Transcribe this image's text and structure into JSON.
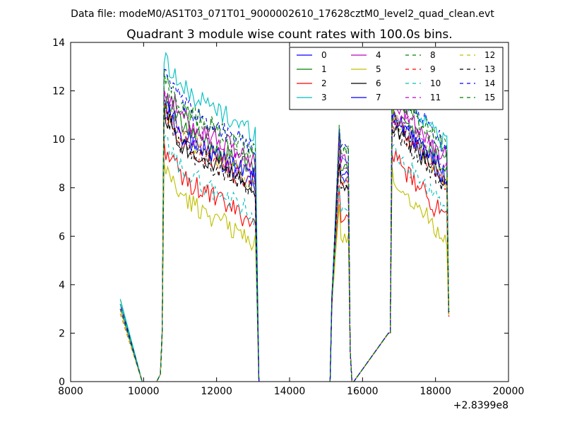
{
  "suptitle": "Data file: modeM0/AS1T03_071T01_9000002610_17628cztM0_level2_quad_clean.evt",
  "chart_data": {
    "type": "line",
    "title": "Quadrant 3 module wise count rates with 100.0s bins.",
    "xlabel": "",
    "ylabel": "",
    "xlim": [
      8000,
      20000
    ],
    "ylim": [
      0,
      14
    ],
    "x_offset_label": "+2.8399e8",
    "x_ticks": [
      "8000",
      "10000",
      "12000",
      "14000",
      "16000",
      "18000",
      "20000"
    ],
    "y_ticks": [
      "0",
      "2",
      "4",
      "6",
      "8",
      "10",
      "12",
      "14"
    ],
    "grid": false,
    "legend_position": "top-right",
    "legend_columns": 4,
    "x_segments": [
      {
        "x0": 9360,
        "dx": 100,
        "n": 1
      },
      {
        "x0": 9960,
        "dx": 100,
        "n": 1
      },
      {
        "x0": 10360,
        "dx": 100,
        "n": 1
      },
      {
        "x0": 10460,
        "dx": 50,
        "n": 53
      },
      {
        "x0": 13160,
        "dx": 100,
        "n": 1
      },
      {
        "x0": 15110,
        "dx": 50,
        "n": 13
      },
      {
        "x0": 15760,
        "dx": 100,
        "n": 1
      },
      {
        "x0": 16710,
        "dx": 50,
        "n": 34
      },
      {
        "x0": 18360,
        "dx": 20,
        "n": 2
      }
    ],
    "series": [
      {
        "name": "0",
        "color": "#0000ff",
        "dash": false,
        "base": 8.6,
        "spike": 0,
        "ramp": 0.4
      },
      {
        "name": "1",
        "color": "#008000",
        "dash": false,
        "base": 9.0,
        "spike": 0,
        "ramp": 0.6
      },
      {
        "name": "2",
        "color": "#ff0000",
        "dash": false,
        "base": 6.9,
        "spike": 0,
        "ramp": 0.5
      },
      {
        "name": "3",
        "color": "#00bfbf",
        "dash": false,
        "base": 9.4,
        "spike": 1.2,
        "ramp": 0.6
      },
      {
        "name": "4",
        "color": "#bf00bf",
        "dash": false,
        "base": 9.4,
        "spike": 0,
        "ramp": 0.4
      },
      {
        "name": "5",
        "color": "#bfbf00",
        "dash": false,
        "base": 6.1,
        "spike": 0,
        "ramp": 0.4
      },
      {
        "name": "6",
        "color": "#000000",
        "dash": false,
        "base": 8.3,
        "spike": 0,
        "ramp": 0.5
      },
      {
        "name": "7",
        "color": "#0000ff",
        "dash": false,
        "base": 8.7,
        "spike": 0,
        "ramp": 0.5
      },
      {
        "name": "8",
        "color": "#008000",
        "dash": true,
        "base": 9.7,
        "spike": 0,
        "ramp": 0.5
      },
      {
        "name": "9",
        "color": "#ff0000",
        "dash": true,
        "base": 8.4,
        "spike": 0,
        "ramp": 0.3
      },
      {
        "name": "10",
        "color": "#00bfbf",
        "dash": true,
        "base": 7.2,
        "spike": 0,
        "ramp": 0.5
      },
      {
        "name": "11",
        "color": "#bf00bf",
        "dash": true,
        "base": 8.9,
        "spike": 0,
        "ramp": 0.3
      },
      {
        "name": "12",
        "color": "#bfbf00",
        "dash": true,
        "base": 8.6,
        "spike": 0,
        "ramp": 0.3
      },
      {
        "name": "13",
        "color": "#000000",
        "dash": true,
        "base": 8.2,
        "spike": 0,
        "ramp": 0.4
      },
      {
        "name": "14",
        "color": "#0000ff",
        "dash": true,
        "base": 9.9,
        "spike": 0,
        "ramp": 0.4
      },
      {
        "name": "15",
        "color": "#008000",
        "dash": true,
        "base": 9.8,
        "spike": 0,
        "ramp": 0.4
      }
    ]
  }
}
